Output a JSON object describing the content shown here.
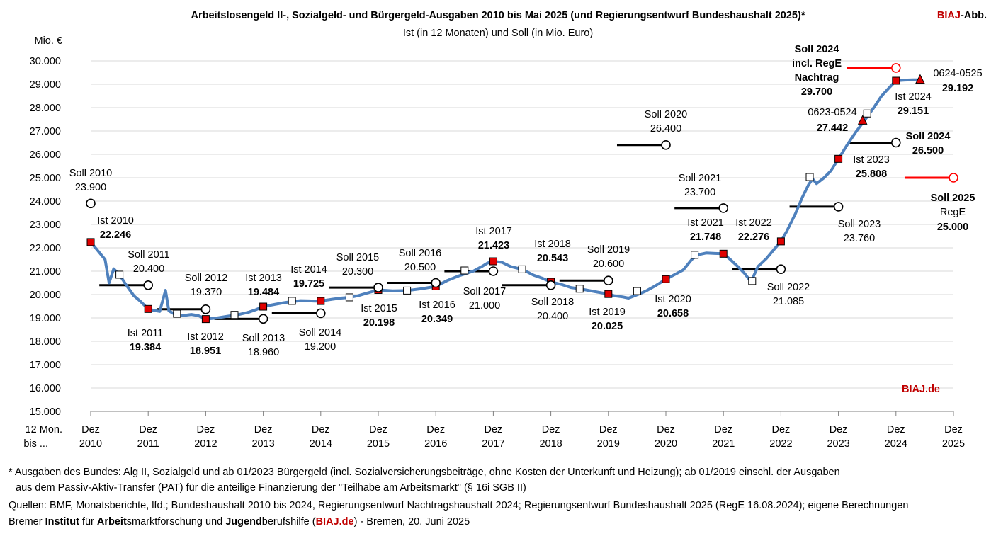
{
  "header": {
    "title": "Arbeitslosengeld II-, Sozialgeld- und Bürgergeld-Ausgaben 2010 bis Mai 2025 (und Regierungsentwurf Bundeshaushalt 2025)*",
    "subtitle": "Ist (in 12 Monaten) und Soll (in Mio. Euro)",
    "brand_red": "BIAJ",
    "brand_rest": "-Abb.",
    "watermark": "BIAJ.de"
  },
  "chart_data": {
    "type": "line",
    "ylabel": "Mio. €",
    "ylim": [
      15000,
      30000
    ],
    "yticks": [
      "15.000",
      "16.000",
      "17.000",
      "18.000",
      "19.000",
      "20.000",
      "21.000",
      "22.000",
      "23.000",
      "24.000",
      "25.000",
      "26.000",
      "27.000",
      "28.000",
      "29.000",
      "30.000"
    ],
    "x_corner_label": [
      "12 Mon.",
      "bis ..."
    ],
    "x_categories": [
      [
        "Dez",
        "2010"
      ],
      [
        "Dez",
        "2011"
      ],
      [
        "Dez",
        "2012"
      ],
      [
        "Dez",
        "2013"
      ],
      [
        "Dez",
        "2014"
      ],
      [
        "Dez",
        "2015"
      ],
      [
        "Dez",
        "2016"
      ],
      [
        "Dez",
        "2017"
      ],
      [
        "Dez",
        "2018"
      ],
      [
        "Dez",
        "2019"
      ],
      [
        "Dez",
        "2020"
      ],
      [
        "Dez",
        "2021"
      ],
      [
        "Dez",
        "2022"
      ],
      [
        "Dez",
        "2023"
      ],
      [
        "Dez",
        "2024"
      ],
      [
        "Dez",
        "2025"
      ]
    ],
    "x_numeric_range": [
      2010,
      2025
    ],
    "series": [
      {
        "kind": "rolling-12-month-sum",
        "color": "#4f81bd",
        "points": [
          [
            2010.0,
            22246
          ],
          [
            2010.1,
            21950
          ],
          [
            2010.25,
            21500
          ],
          [
            2010.32,
            20500
          ],
          [
            2010.4,
            21100
          ],
          [
            2010.5,
            20850
          ],
          [
            2010.62,
            20400
          ],
          [
            2010.75,
            19950
          ],
          [
            2010.87,
            19700
          ],
          [
            2011.0,
            19384
          ],
          [
            2011.1,
            19320
          ],
          [
            2011.2,
            19280
          ],
          [
            2011.3,
            20180
          ],
          [
            2011.36,
            19300
          ],
          [
            2011.45,
            19180
          ],
          [
            2011.6,
            19100
          ],
          [
            2011.75,
            19150
          ],
          [
            2011.87,
            19100
          ],
          [
            2012.0,
            18951
          ],
          [
            2012.2,
            19000
          ],
          [
            2012.4,
            19080
          ],
          [
            2012.55,
            19130
          ],
          [
            2012.75,
            19250
          ],
          [
            2012.87,
            19350
          ],
          [
            2013.0,
            19484
          ],
          [
            2013.2,
            19580
          ],
          [
            2013.35,
            19650
          ],
          [
            2013.5,
            19700
          ],
          [
            2013.65,
            19740
          ],
          [
            2013.8,
            19730
          ],
          [
            2013.9,
            19720
          ],
          [
            2014.0,
            19725
          ],
          [
            2014.2,
            19800
          ],
          [
            2014.35,
            19850
          ],
          [
            2014.5,
            19880
          ],
          [
            2014.65,
            19950
          ],
          [
            2014.8,
            20060
          ],
          [
            2015.0,
            20198
          ],
          [
            2015.25,
            20160
          ],
          [
            2015.5,
            20170
          ],
          [
            2015.75,
            20250
          ],
          [
            2016.0,
            20349
          ],
          [
            2016.2,
            20600
          ],
          [
            2016.4,
            20800
          ],
          [
            2016.65,
            21000
          ],
          [
            2016.8,
            21200
          ],
          [
            2016.9,
            21350
          ],
          [
            2017.0,
            21423
          ],
          [
            2017.15,
            21380
          ],
          [
            2017.3,
            21200
          ],
          [
            2017.5,
            21080
          ],
          [
            2017.7,
            20830
          ],
          [
            2017.85,
            20700
          ],
          [
            2018.0,
            20543
          ],
          [
            2018.2,
            20420
          ],
          [
            2018.35,
            20300
          ],
          [
            2018.5,
            20250
          ],
          [
            2018.65,
            20180
          ],
          [
            2018.8,
            20110
          ],
          [
            2019.0,
            20025
          ],
          [
            2019.1,
            19950
          ],
          [
            2019.25,
            19900
          ],
          [
            2019.35,
            19850
          ],
          [
            2019.5,
            19990
          ],
          [
            2019.65,
            20150
          ],
          [
            2019.8,
            20350
          ],
          [
            2020.0,
            20658
          ],
          [
            2020.15,
            20850
          ],
          [
            2020.3,
            21050
          ],
          [
            2020.45,
            21500
          ],
          [
            2020.55,
            21700
          ],
          [
            2020.7,
            21780
          ],
          [
            2020.85,
            21760
          ],
          [
            2021.0,
            21748
          ],
          [
            2021.12,
            21500
          ],
          [
            2021.25,
            21200
          ],
          [
            2021.37,
            20900
          ],
          [
            2021.48,
            20550
          ],
          [
            2021.6,
            21200
          ],
          [
            2021.75,
            21550
          ],
          [
            2021.87,
            21900
          ],
          [
            2022.0,
            22276
          ],
          [
            2022.1,
            22700
          ],
          [
            2022.25,
            23450
          ],
          [
            2022.37,
            24150
          ],
          [
            2022.48,
            24700
          ],
          [
            2022.55,
            24950
          ],
          [
            2022.62,
            24750
          ],
          [
            2022.75,
            25000
          ],
          [
            2022.87,
            25300
          ],
          [
            2023.0,
            25808
          ],
          [
            2023.15,
            26400
          ],
          [
            2023.3,
            26950
          ],
          [
            2023.45,
            27442
          ],
          [
            2023.6,
            27950
          ],
          [
            2023.75,
            28500
          ],
          [
            2023.9,
            28900
          ],
          [
            2024.0,
            29151
          ],
          [
            2024.15,
            29180
          ],
          [
            2024.3,
            29192
          ],
          [
            2024.42,
            29192
          ]
        ]
      }
    ],
    "ist_markers_red": [
      {
        "label": "Ist 2010",
        "value_text": "22.246",
        "x": 2010.0,
        "y": 22246
      },
      {
        "label": "Ist 2011",
        "value_text": "19.384",
        "x": 2011.0,
        "y": 19384
      },
      {
        "label": "Ist 2012",
        "value_text": "18.951",
        "x": 2012.0,
        "y": 18951
      },
      {
        "label": "Ist 2013",
        "value_text": "19.484",
        "x": 2013.0,
        "y": 19484
      },
      {
        "label": "Ist 2014",
        "value_text": "19.725",
        "x": 2014.0,
        "y": 19725
      },
      {
        "label": "Ist 2015",
        "value_text": "20.198",
        "x": 2015.0,
        "y": 20198
      },
      {
        "label": "Ist 2016",
        "value_text": "20.349",
        "x": 2016.0,
        "y": 20349
      },
      {
        "label": "Ist 2017",
        "value_text": "21.423",
        "x": 2017.0,
        "y": 21423
      },
      {
        "label": "Ist 2018",
        "value_text": "20.543",
        "x": 2018.0,
        "y": 20543
      },
      {
        "label": "Ist 2019",
        "value_text": "20.025",
        "x": 2019.0,
        "y": 20025
      },
      {
        "label": "Ist 2020",
        "value_text": "20.658",
        "x": 2020.0,
        "y": 20658
      },
      {
        "label": "Ist 2021",
        "value_text": "21.748",
        "x": 2021.0,
        "y": 21748
      },
      {
        "label": "Ist 2022",
        "value_text": "22.276",
        "x": 2022.0,
        "y": 22276
      },
      {
        "label": "Ist 2023",
        "value_text": "25.808",
        "x": 2023.0,
        "y": 25808
      },
      {
        "label": "Ist 2024",
        "value_text": "29.151",
        "x": 2024.0,
        "y": 29151
      }
    ],
    "midyear_markers_white": [
      {
        "x": 2010.5,
        "y": 20850
      },
      {
        "x": 2011.5,
        "y": 19180
      },
      {
        "x": 2012.5,
        "y": 19130
      },
      {
        "x": 2013.5,
        "y": 19730
      },
      {
        "x": 2014.5,
        "y": 19880
      },
      {
        "x": 2015.5,
        "y": 20170
      },
      {
        "x": 2016.5,
        "y": 21030
      },
      {
        "x": 2017.5,
        "y": 21080
      },
      {
        "x": 2018.5,
        "y": 20250
      },
      {
        "x": 2019.5,
        "y": 20150
      },
      {
        "x": 2020.5,
        "y": 21700
      },
      {
        "x": 2021.5,
        "y": 20580
      },
      {
        "x": 2022.5,
        "y": 25030
      },
      {
        "x": 2023.5,
        "y": 27750
      }
    ],
    "triangle_markers": [
      {
        "label": "0623-0524",
        "value_text": "27.442",
        "x": 2023.42,
        "y": 27442
      },
      {
        "label": "0624-0525",
        "value_text": "29.192",
        "x": 2024.42,
        "y": 29192
      }
    ],
    "soll_markers": [
      {
        "label": "Soll 2010",
        "value_text": "23.900",
        "x": 2010.0,
        "y": 23900,
        "bar": false
      },
      {
        "label": "Soll 2011",
        "value_text": "20.400",
        "x": 2011.0,
        "y": 20400,
        "bar": true
      },
      {
        "label": "Soll 2012",
        "value_text": "19.370",
        "x": 2012.0,
        "y": 19370,
        "bar": true
      },
      {
        "label": "Soll 2013",
        "value_text": "18.960",
        "x": 2013.0,
        "y": 18960,
        "bar": true
      },
      {
        "label": "Soll 2014",
        "value_text": "19.200",
        "x": 2014.0,
        "y": 19200,
        "bar": true
      },
      {
        "label": "Soll 2015",
        "value_text": "20.300",
        "x": 2015.0,
        "y": 20300,
        "bar": true
      },
      {
        "label": "Soll 2016",
        "value_text": "20.500",
        "x": 2016.0,
        "y": 20500,
        "bar": true
      },
      {
        "label": "Soll 2017",
        "value_text": "21.000",
        "x": 2017.0,
        "y": 21000,
        "bar": true
      },
      {
        "label": "Soll 2018",
        "value_text": "20.400",
        "x": 2018.0,
        "y": 20400,
        "bar": true
      },
      {
        "label": "Soll 2019",
        "value_text": "20.600",
        "x": 2019.0,
        "y": 20600,
        "bar": true
      },
      {
        "label": "Soll 2020",
        "value_text": "26.400",
        "x": 2020.0,
        "y": 26400,
        "bar": true
      },
      {
        "label": "Soll 2021",
        "value_text": "23.700",
        "x": 2021.0,
        "y": 23700,
        "bar": true
      },
      {
        "label": "Soll 2022",
        "value_text": "21.085",
        "x": 2022.0,
        "y": 21085,
        "bar": true
      },
      {
        "label": "Soll 2023",
        "value_text": "23.760",
        "x": 2023.0,
        "y": 23760,
        "bar": true
      },
      {
        "label": "Soll 2024",
        "value_text": "26.500",
        "x": 2024.0,
        "y": 26500,
        "bar": true,
        "bold": true
      }
    ],
    "soll_markers_red": [
      {
        "label_lines": [
          "Soll 2024",
          "incl. RegE",
          "Nachtrag"
        ],
        "value_text": "29.700",
        "x": 2024.0,
        "y": 29700
      },
      {
        "label_lines": [
          "Soll 2025",
          "RegE"
        ],
        "value_text": "25.000",
        "x": 2025.0,
        "y": 25000
      }
    ],
    "colors": {
      "line": "#4f81bd",
      "ist": "#e00000",
      "soll_bar": "#000000",
      "soll_red": "#ff0000",
      "grid": "#d9d9d9"
    }
  },
  "footer": {
    "line1": "* Ausgaben des Bundes: Alg II, Sozialgeld und ab 01/2023 Bürgergeld (incl. Sozialversicherungsbeiträge, ohne Kosten der Unterkunft und Heizung); ab 01/2019 einschl. der Ausgaben",
    "line2": "aus dem Passiv-Aktiv-Transfer (PAT) für die anteilige Finanzierung der \"Teilhabe am Arbeitsmarkt\" (§ 16i SGB II)",
    "line3": "Quellen: BMF, Monatsberichte, lfd.; Bundeshaushalt 2010 bis 2024, Regierungsentwurf Nachtragshaushalt 2024; Regierungsentwurf Bundeshaushalt 2025 (RegE 16.08.2024); eigene Berechnungen",
    "line4_a": "Bremer ",
    "line4_b": "Institut",
    "line4_c": " für ",
    "line4_d": "Arbeit",
    "line4_e": "smarktforschung und ",
    "line4_f": "Jugend",
    "line4_g": "berufshilfe (",
    "line4_h": "BIAJ.de",
    "line4_i": ") - Bremen, 20. Juni 2025"
  }
}
